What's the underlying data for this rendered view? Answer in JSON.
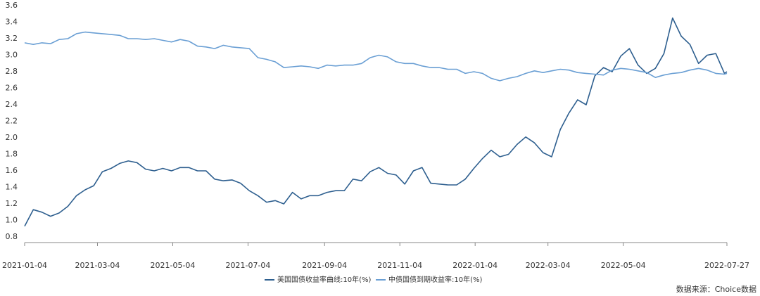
{
  "chart_data": {
    "type": "line",
    "x": [
      "2021-01-04",
      "2021-01-11",
      "2021-01-18",
      "2021-01-25",
      "2021-02-01",
      "2021-02-08",
      "2021-02-15",
      "2021-02-22",
      "2021-03-01",
      "2021-03-08",
      "2021-03-15",
      "2021-03-22",
      "2021-03-29",
      "2021-04-05",
      "2021-04-12",
      "2021-04-19",
      "2021-04-26",
      "2021-05-03",
      "2021-05-10",
      "2021-05-17",
      "2021-05-24",
      "2021-05-31",
      "2021-06-07",
      "2021-06-14",
      "2021-06-21",
      "2021-06-28",
      "2021-07-05",
      "2021-07-12",
      "2021-07-19",
      "2021-07-26",
      "2021-08-02",
      "2021-08-09",
      "2021-08-16",
      "2021-08-23",
      "2021-08-30",
      "2021-09-06",
      "2021-09-13",
      "2021-09-20",
      "2021-09-27",
      "2021-10-04",
      "2021-10-11",
      "2021-10-18",
      "2021-10-25",
      "2021-11-01",
      "2021-11-08",
      "2021-11-15",
      "2021-11-22",
      "2021-11-29",
      "2021-12-06",
      "2021-12-13",
      "2021-12-20",
      "2021-12-27",
      "2022-01-03",
      "2022-01-10",
      "2022-01-17",
      "2022-01-24",
      "2022-01-31",
      "2022-02-07",
      "2022-02-14",
      "2022-02-21",
      "2022-02-28",
      "2022-03-07",
      "2022-03-14",
      "2022-03-21",
      "2022-03-28",
      "2022-04-04",
      "2022-04-11",
      "2022-04-18",
      "2022-04-25",
      "2022-05-02",
      "2022-05-09",
      "2022-05-16",
      "2022-05-23",
      "2022-05-30",
      "2022-06-06",
      "2022-06-13",
      "2022-06-20",
      "2022-06-27",
      "2022-07-04",
      "2022-07-11",
      "2022-07-18",
      "2022-07-25",
      "2022-07-27"
    ],
    "series": [
      {
        "name": "美国国债收益率曲线:10年(%)",
        "color": "#2e5f8f",
        "values": [
          0.93,
          1.13,
          1.1,
          1.05,
          1.09,
          1.17,
          1.3,
          1.37,
          1.42,
          1.59,
          1.63,
          1.69,
          1.72,
          1.7,
          1.62,
          1.6,
          1.63,
          1.6,
          1.64,
          1.64,
          1.6,
          1.6,
          1.5,
          1.48,
          1.49,
          1.45,
          1.36,
          1.3,
          1.22,
          1.24,
          1.2,
          1.34,
          1.26,
          1.3,
          1.3,
          1.34,
          1.36,
          1.36,
          1.5,
          1.48,
          1.59,
          1.64,
          1.57,
          1.55,
          1.44,
          1.6,
          1.64,
          1.45,
          1.44,
          1.43,
          1.43,
          1.5,
          1.63,
          1.75,
          1.85,
          1.77,
          1.8,
          1.92,
          2.01,
          1.94,
          1.82,
          1.77,
          2.1,
          2.3,
          2.46,
          2.4,
          2.75,
          2.85,
          2.8,
          2.99,
          3.08,
          2.88,
          2.78,
          2.84,
          3.02,
          3.45,
          3.23,
          3.13,
          2.9,
          3.0,
          3.02,
          2.78,
          2.8
        ]
      },
      {
        "name": "中债国债到期收益率:10年(%)",
        "color": "#6a9fd4",
        "values": [
          3.15,
          3.13,
          3.15,
          3.14,
          3.19,
          3.2,
          3.26,
          3.28,
          3.27,
          3.26,
          3.25,
          3.24,
          3.2,
          3.2,
          3.19,
          3.2,
          3.18,
          3.16,
          3.19,
          3.17,
          3.11,
          3.1,
          3.08,
          3.12,
          3.1,
          3.09,
          3.08,
          2.97,
          2.95,
          2.92,
          2.85,
          2.86,
          2.87,
          2.86,
          2.84,
          2.88,
          2.87,
          2.88,
          2.88,
          2.9,
          2.97,
          3.0,
          2.98,
          2.92,
          2.9,
          2.9,
          2.87,
          2.85,
          2.85,
          2.83,
          2.83,
          2.78,
          2.8,
          2.78,
          2.72,
          2.69,
          2.72,
          2.74,
          2.78,
          2.81,
          2.79,
          2.81,
          2.83,
          2.82,
          2.79,
          2.78,
          2.77,
          2.76,
          2.82,
          2.84,
          2.83,
          2.81,
          2.79,
          2.73,
          2.76,
          2.78,
          2.79,
          2.82,
          2.84,
          2.82,
          2.78,
          2.77,
          2.78
        ]
      }
    ],
    "xlim": [
      "2021-01-04",
      "2022-07-27"
    ],
    "xticks": [
      "2021-01-04",
      "2021-03-04",
      "2021-05-04",
      "2021-07-04",
      "2021-09-04",
      "2021-11-04",
      "2022-01-04",
      "2022-03-04",
      "2022-05-04",
      "2022-07-27"
    ],
    "ylim": [
      0.8,
      3.6
    ],
    "yticks": [
      0.8,
      {
        "value": 1.0,
        "label": "1.0"
      },
      1.2,
      1.4,
      1.6,
      1.8,
      {
        "value": 2.0,
        "label": "2.0"
      },
      2.2,
      2.4,
      2.6,
      2.8,
      {
        "value": 3.0,
        "label": "3.0"
      },
      3.2,
      3.4,
      3.6
    ],
    "grid": false,
    "legend": "bottom",
    "source": "数据来源：Choice数据"
  }
}
